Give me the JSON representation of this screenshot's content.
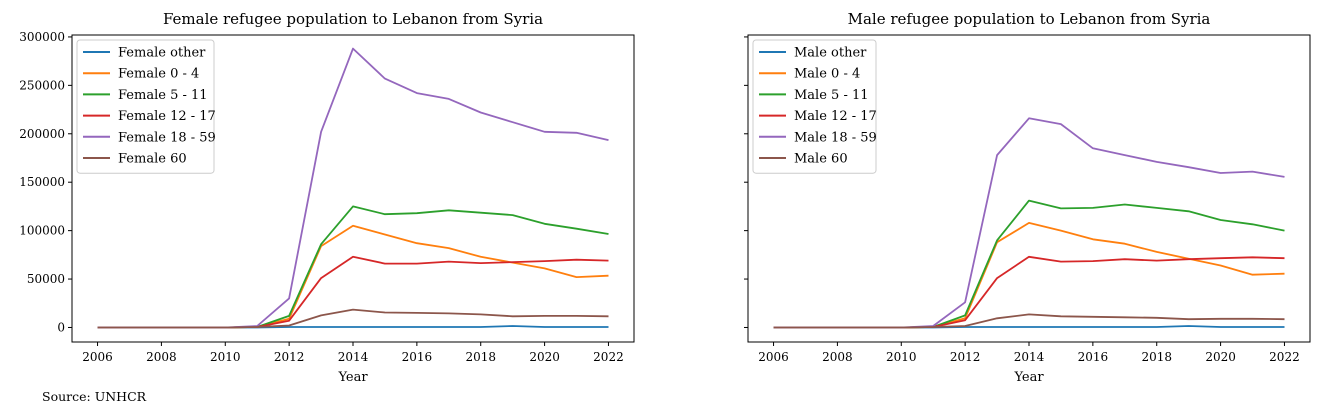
{
  "source": "Source: UNHCR",
  "chart_data": [
    {
      "type": "line",
      "title": "Female refugee population to Lebanon from Syria",
      "xlabel": "Year",
      "ylabel": "",
      "xlim": [
        2005.2,
        2022.8
      ],
      "ylim": [
        -15000,
        302000
      ],
      "xticks": [
        2006,
        2008,
        2010,
        2012,
        2014,
        2016,
        2018,
        2020,
        2022
      ],
      "yticks": [
        0,
        50000,
        100000,
        150000,
        200000,
        250000,
        300000
      ],
      "legend": "top-left",
      "grid": false,
      "x": [
        2006,
        2007,
        2008,
        2009,
        2010,
        2011,
        2012,
        2013,
        2014,
        2015,
        2016,
        2017,
        2018,
        2019,
        2020,
        2021,
        2022
      ],
      "series": [
        {
          "name": "Female other",
          "color": "#1f77b4",
          "values": [
            0,
            0,
            0,
            0,
            0,
            0,
            500,
            500,
            500,
            500,
            500,
            500,
            500,
            1500,
            500,
            500,
            500
          ]
        },
        {
          "name": "Female 0 - 4",
          "color": "#ff7f0e",
          "values": [
            0,
            0,
            0,
            0,
            0,
            500,
            9000,
            84000,
            105000,
            96000,
            87000,
            82000,
            73000,
            67000,
            61000,
            52000,
            53500
          ]
        },
        {
          "name": "Female 5 - 11",
          "color": "#2ca02c",
          "values": [
            0,
            0,
            0,
            0,
            0,
            500,
            12000,
            86000,
            125000,
            117000,
            118000,
            121000,
            118500,
            116000,
            107000,
            102000,
            96500
          ]
        },
        {
          "name": "Female 12 - 17",
          "color": "#d62728",
          "values": [
            0,
            0,
            0,
            0,
            0,
            500,
            7000,
            51000,
            73000,
            66000,
            66000,
            68000,
            66500,
            67500,
            68500,
            70000,
            69000
          ]
        },
        {
          "name": "Female 18 - 59",
          "color": "#9467bd",
          "values": [
            0,
            0,
            0,
            0,
            0,
            1500,
            30000,
            202000,
            288000,
            257000,
            242000,
            236000,
            222000,
            212000,
            202000,
            201000,
            193500
          ]
        },
        {
          "name": "Female 60",
          "color": "#8c564b",
          "values": [
            0,
            0,
            0,
            0,
            0,
            500,
            2000,
            12500,
            18500,
            15500,
            15000,
            14500,
            13500,
            11500,
            12000,
            12000,
            11500
          ]
        }
      ]
    },
    {
      "type": "line",
      "title": "Male refugee population to Lebanon from Syria",
      "xlabel": "Year",
      "ylabel": "",
      "xlim": [
        2005.2,
        2022.8
      ],
      "ylim": [
        -15000,
        302000
      ],
      "xticks": [
        2006,
        2008,
        2010,
        2012,
        2014,
        2016,
        2018,
        2020,
        2022
      ],
      "yticks": [
        0,
        50000,
        100000,
        150000,
        200000,
        250000,
        300000
      ],
      "legend": "top-left",
      "grid": false,
      "x": [
        2006,
        2007,
        2008,
        2009,
        2010,
        2011,
        2012,
        2013,
        2014,
        2015,
        2016,
        2017,
        2018,
        2019,
        2020,
        2021,
        2022
      ],
      "series": [
        {
          "name": "Male other",
          "color": "#1f77b4",
          "values": [
            0,
            0,
            0,
            0,
            0,
            0,
            500,
            500,
            500,
            500,
            500,
            500,
            500,
            1500,
            500,
            500,
            500
          ]
        },
        {
          "name": "Male 0 - 4",
          "color": "#ff7f0e",
          "values": [
            0,
            0,
            0,
            0,
            0,
            500,
            9500,
            88000,
            108000,
            100000,
            91000,
            86500,
            78000,
            71000,
            64000,
            54500,
            55500
          ]
        },
        {
          "name": "Male 5 - 11",
          "color": "#2ca02c",
          "values": [
            0,
            0,
            0,
            0,
            0,
            500,
            12500,
            90000,
            131000,
            123000,
            123500,
            127000,
            123500,
            120000,
            111000,
            106500,
            100000
          ]
        },
        {
          "name": "Male 12 - 17",
          "color": "#d62728",
          "values": [
            0,
            0,
            0,
            0,
            0,
            500,
            7500,
            51000,
            73000,
            68000,
            68500,
            70500,
            69000,
            70500,
            71500,
            72500,
            71500
          ]
        },
        {
          "name": "Male 18 - 59",
          "color": "#9467bd",
          "values": [
            0,
            0,
            0,
            0,
            0,
            1500,
            26000,
            178000,
            216000,
            210000,
            185000,
            178000,
            171000,
            165500,
            159500,
            161000,
            155500
          ]
        },
        {
          "name": "Male 60",
          "color": "#8c564b",
          "values": [
            0,
            0,
            0,
            0,
            0,
            500,
            1500,
            9500,
            13500,
            11500,
            11000,
            10500,
            10000,
            8500,
            9000,
            9000,
            8500
          ]
        }
      ]
    }
  ]
}
